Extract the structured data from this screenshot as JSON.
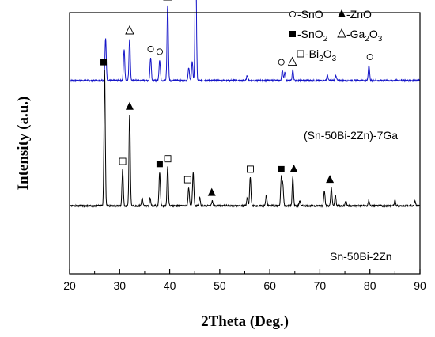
{
  "chart_data": {
    "type": "line",
    "xlabel": "2Theta (Deg.)",
    "ylabel": "Intensity (a.u.)",
    "xlim": [
      20,
      90
    ],
    "xticks": [
      "20",
      "30",
      "40",
      "50",
      "60",
      "70",
      "80",
      "90"
    ],
    "legend": [
      {
        "marker": "circle-open",
        "label": "-SnO"
      },
      {
        "marker": "triangle-filled",
        "label": "-ZnO"
      },
      {
        "marker": "square-filled",
        "label": "-SnO",
        "sub": "2"
      },
      {
        "marker": "triangle-open",
        "label": "-Ga",
        "sub": "2",
        "label2": "O",
        "sub2": "3"
      },
      {
        "marker": "square-open",
        "label": "-Bi",
        "sub": "2",
        "label2": "O",
        "sub2": "3"
      }
    ],
    "series": [
      {
        "name": "(Sn-50Bi-2Zn)-7Ga",
        "color": "#1515c8",
        "baseline": 0.74,
        "peaks": [
          {
            "x": 27.2,
            "h": 0.16
          },
          {
            "x": 30.9,
            "h": 0.12
          },
          {
            "x": 32.0,
            "h": 0.16
          },
          {
            "x": 36.2,
            "h": 0.09
          },
          {
            "x": 38.0,
            "h": 0.08
          },
          {
            "x": 39.6,
            "h": 0.29
          },
          {
            "x": 43.8,
            "h": 0.05
          },
          {
            "x": 44.5,
            "h": 0.07
          },
          {
            "x": 45.2,
            "h": 0.54
          },
          {
            "x": 55.5,
            "h": 0.02
          },
          {
            "x": 62.5,
            "h": 0.04
          },
          {
            "x": 63.0,
            "h": 0.03
          },
          {
            "x": 64.6,
            "h": 0.04
          },
          {
            "x": 71.5,
            "h": 0.02
          },
          {
            "x": 73.2,
            "h": 0.02
          },
          {
            "x": 79.8,
            "h": 0.06
          }
        ],
        "markers": [
          {
            "x": 32.0,
            "type": "triangle-open"
          },
          {
            "x": 36.2,
            "type": "circle-open"
          },
          {
            "x": 38.0,
            "type": "circle-open"
          },
          {
            "x": 39.6,
            "type": "triangle-open"
          },
          {
            "x": 45.2,
            "type": "triangle-open"
          },
          {
            "x": 62.3,
            "type": "circle-open"
          },
          {
            "x": 64.5,
            "type": "triangle-open"
          },
          {
            "x": 80.0,
            "type": "circle-open"
          }
        ]
      },
      {
        "name": "Sn-50Bi-2Zn",
        "color": "#000000",
        "baseline": 0.26,
        "peaks": [
          {
            "x": 27.0,
            "h": 0.52
          },
          {
            "x": 30.6,
            "h": 0.14
          },
          {
            "x": 32.0,
            "h": 0.35
          },
          {
            "x": 34.5,
            "h": 0.03
          },
          {
            "x": 36.1,
            "h": 0.03
          },
          {
            "x": 38.0,
            "h": 0.13
          },
          {
            "x": 39.6,
            "h": 0.15
          },
          {
            "x": 43.8,
            "h": 0.07
          },
          {
            "x": 44.7,
            "h": 0.13
          },
          {
            "x": 46.0,
            "h": 0.03
          },
          {
            "x": 48.5,
            "h": 0.02
          },
          {
            "x": 55.5,
            "h": 0.03
          },
          {
            "x": 56.1,
            "h": 0.11
          },
          {
            "x": 59.3,
            "h": 0.04
          },
          {
            "x": 62.3,
            "h": 0.11
          },
          {
            "x": 62.6,
            "h": 0.08
          },
          {
            "x": 64.6,
            "h": 0.11
          },
          {
            "x": 66.0,
            "h": 0.02
          },
          {
            "x": 70.9,
            "h": 0.06
          },
          {
            "x": 72.3,
            "h": 0.07
          },
          {
            "x": 73.1,
            "h": 0.04
          },
          {
            "x": 75.2,
            "h": 0.02
          },
          {
            "x": 79.8,
            "h": 0.02
          },
          {
            "x": 85.0,
            "h": 0.02
          },
          {
            "x": 89.0,
            "h": 0.02
          }
        ],
        "markers": [
          {
            "x": 26.8,
            "type": "square-filled"
          },
          {
            "x": 30.6,
            "type": "square-open"
          },
          {
            "x": 32.0,
            "type": "triangle-filled"
          },
          {
            "x": 38.0,
            "type": "square-filled"
          },
          {
            "x": 39.6,
            "type": "square-open"
          },
          {
            "x": 43.6,
            "type": "square-open"
          },
          {
            "x": 48.4,
            "type": "triangle-filled"
          },
          {
            "x": 56.1,
            "type": "square-open"
          },
          {
            "x": 62.3,
            "type": "square-filled"
          },
          {
            "x": 64.8,
            "type": "triangle-filled"
          },
          {
            "x": 72.0,
            "type": "triangle-filled"
          }
        ]
      }
    ]
  }
}
